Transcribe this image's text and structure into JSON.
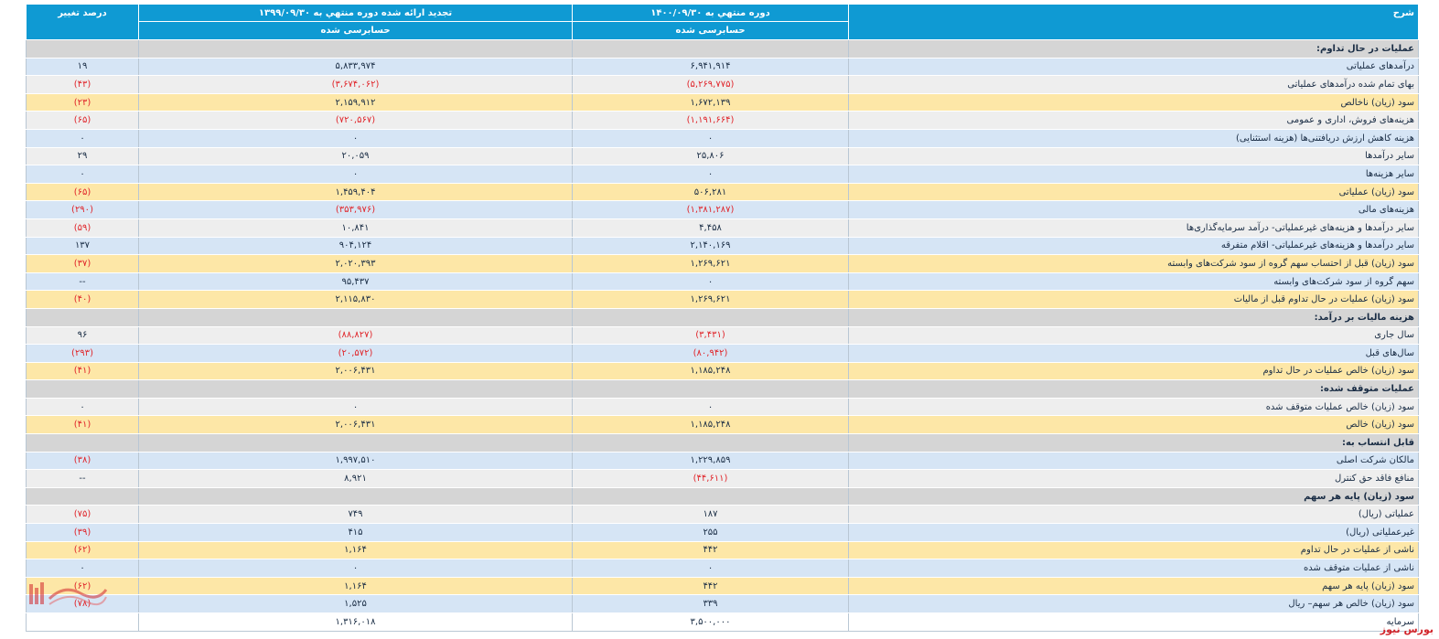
{
  "header": {
    "desc": "شرح",
    "col1": "دوره منتهي به ۱۴۰۰/۰۹/۳۰",
    "col2": "تجدید ارائه شده دوره منتهي به ۱۳۹۹/۰۹/۳۰",
    "col3": "درصد تغيير",
    "col1_sub": "حسابرسی شده",
    "col2_sub": "حسابرسی شده"
  },
  "rows": [
    {
      "type": "sec",
      "label": "عملیات در حال تداوم:",
      "v1": "",
      "v2": "",
      "v3": "",
      "neg": [
        false,
        false,
        false
      ]
    },
    {
      "type": "blue",
      "label": "درآمدهای عملیاتی",
      "v1": "۶,۹۴۱,۹۱۴",
      "v2": "۵,۸۳۳,۹۷۴",
      "v3": "۱۹",
      "neg": [
        false,
        false,
        false
      ]
    },
    {
      "type": "gray",
      "label": "بهای تمام شده درآمدهای عملیاتی",
      "v1": "(۵,۲۶۹,۷۷۵)",
      "v2": "(۳,۶۷۴,۰۶۲)",
      "v3": "(۴۳)",
      "neg": [
        true,
        true,
        true
      ]
    },
    {
      "type": "yel",
      "label": "سود (زیان) ناخالص",
      "v1": "۱,۶۷۲,۱۳۹",
      "v2": "۲,۱۵۹,۹۱۲",
      "v3": "(۲۳)",
      "neg": [
        false,
        false,
        true
      ]
    },
    {
      "type": "gray",
      "label": "هزینه‌های فروش، اداری و عمومی",
      "v1": "(۱,۱۹۱,۶۶۴)",
      "v2": "(۷۲۰,۵۶۷)",
      "v3": "(۶۵)",
      "neg": [
        true,
        true,
        true
      ]
    },
    {
      "type": "blue",
      "label": "هزینه کاهش ارزش دریافتنی‌ها (هزینه استثنایی)",
      "v1": "۰",
      "v2": "۰",
      "v3": "۰",
      "neg": [
        false,
        false,
        false
      ]
    },
    {
      "type": "gray",
      "label": "سایر درآمدها",
      "v1": "۲۵,۸۰۶",
      "v2": "۲۰,۰۵۹",
      "v3": "۲۹",
      "neg": [
        false,
        false,
        false
      ]
    },
    {
      "type": "blue",
      "label": "سایر هزینه‌ها",
      "v1": "۰",
      "v2": "۰",
      "v3": "۰",
      "neg": [
        false,
        false,
        false
      ]
    },
    {
      "type": "yel",
      "label": "سود (زیان) عملیاتی",
      "v1": "۵۰۶,۲۸۱",
      "v2": "۱,۴۵۹,۴۰۴",
      "v3": "(۶۵)",
      "neg": [
        false,
        false,
        true
      ]
    },
    {
      "type": "blue",
      "label": "هزینه‌های مالی",
      "v1": "(۱,۳۸۱,۲۸۷)",
      "v2": "(۳۵۳,۹۷۶)",
      "v3": "(۲۹۰)",
      "neg": [
        true,
        true,
        true
      ]
    },
    {
      "type": "gray",
      "label": "سایر درآمدها و هزینه‌های غیرعملیاتی- درآمد سرمایه‌گذاری‌ها",
      "v1": "۴,۴۵۸",
      "v2": "۱۰,۸۴۱",
      "v3": "(۵۹)",
      "neg": [
        false,
        false,
        true
      ]
    },
    {
      "type": "blue",
      "label": "سایر درآمدها و هزینه‌های غیرعملیاتی- اقلام متفرقه",
      "v1": "۲,۱۴۰,۱۶۹",
      "v2": "۹۰۴,۱۲۴",
      "v3": "۱۳۷",
      "neg": [
        false,
        false,
        false
      ]
    },
    {
      "type": "yel",
      "label": "سود (زیان) قبل از احتساب سهم گروه از سود شرکت‌های وابسته",
      "v1": "۱,۲۶۹,۶۲۱",
      "v2": "۲,۰۲۰,۳۹۳",
      "v3": "(۳۷)",
      "neg": [
        false,
        false,
        true
      ]
    },
    {
      "type": "blue",
      "label": "سهم گروه از سود شرکت‌های وابسته",
      "v1": "۰",
      "v2": "۹۵,۴۳۷",
      "v3": "--",
      "neg": [
        false,
        false,
        false
      ]
    },
    {
      "type": "yel",
      "label": "سود (زیان) عملیات در حال تداوم قبل از مالیات",
      "v1": "۱,۲۶۹,۶۲۱",
      "v2": "۲,۱۱۵,۸۳۰",
      "v3": "(۴۰)",
      "neg": [
        false,
        false,
        true
      ]
    },
    {
      "type": "sec",
      "label": "هزینه مالیات بر درآمد:",
      "v1": "",
      "v2": "",
      "v3": "",
      "neg": [
        false,
        false,
        false
      ]
    },
    {
      "type": "gray",
      "label": "سال جاری",
      "v1": "(۳,۴۳۱)",
      "v2": "(۸۸,۸۲۷)",
      "v3": "۹۶",
      "neg": [
        true,
        true,
        false
      ]
    },
    {
      "type": "blue",
      "label": "سال‌های قبل",
      "v1": "(۸۰,۹۴۲)",
      "v2": "(۲۰,۵۷۲)",
      "v3": "(۲۹۳)",
      "neg": [
        true,
        true,
        true
      ]
    },
    {
      "type": "yel",
      "label": "سود (زیان) خالص عملیات در حال تداوم",
      "v1": "۱,۱۸۵,۲۴۸",
      "v2": "۲,۰۰۶,۴۳۱",
      "v3": "(۴۱)",
      "neg": [
        false,
        false,
        true
      ]
    },
    {
      "type": "sec",
      "label": "عملیات متوقف شده:",
      "v1": "",
      "v2": "",
      "v3": "",
      "neg": [
        false,
        false,
        false
      ]
    },
    {
      "type": "gray",
      "label": "سود (زیان) خالص عملیات متوقف شده",
      "v1": "۰",
      "v2": "۰",
      "v3": "۰",
      "neg": [
        false,
        false,
        false
      ]
    },
    {
      "type": "yel",
      "label": "سود (زیان) خالص",
      "v1": "۱,۱۸۵,۲۴۸",
      "v2": "۲,۰۰۶,۴۳۱",
      "v3": "(۴۱)",
      "neg": [
        false,
        false,
        true
      ]
    },
    {
      "type": "sec",
      "label": "قابل انتساب به:",
      "v1": "",
      "v2": "",
      "v3": "",
      "neg": [
        false,
        false,
        false
      ]
    },
    {
      "type": "blue",
      "label": "مالکان شرکت اصلی",
      "v1": "۱,۲۲۹,۸۵۹",
      "v2": "۱,۹۹۷,۵۱۰",
      "v3": "(۳۸)",
      "neg": [
        false,
        false,
        true
      ]
    },
    {
      "type": "gray",
      "label": "منافع فاقد حق کنترل",
      "v1": "(۴۴,۶۱۱)",
      "v2": "۸,۹۲۱",
      "v3": "--",
      "neg": [
        true,
        false,
        false
      ]
    },
    {
      "type": "sec",
      "label": "سود (زیان) پایه هر سهم",
      "v1": "",
      "v2": "",
      "v3": "",
      "neg": [
        false,
        false,
        false
      ]
    },
    {
      "type": "gray",
      "label": "عملیاتی (ریال)",
      "v1": "۱۸۷",
      "v2": "۷۴۹",
      "v3": "(۷۵)",
      "neg": [
        false,
        false,
        true
      ]
    },
    {
      "type": "blue",
      "label": "غیرعملیاتی (ریال)",
      "v1": "۲۵۵",
      "v2": "۴۱۵",
      "v3": "(۳۹)",
      "neg": [
        false,
        false,
        true
      ]
    },
    {
      "type": "yel",
      "label": "ناشی از عملیات در حال تداوم",
      "v1": "۴۴۲",
      "v2": "۱,۱۶۴",
      "v3": "(۶۲)",
      "neg": [
        false,
        false,
        true
      ]
    },
    {
      "type": "blue",
      "label": "ناشی از عملیات متوقف شده",
      "v1": "۰",
      "v2": "۰",
      "v3": "۰",
      "neg": [
        false,
        false,
        false
      ]
    },
    {
      "type": "yel",
      "label": "سود (زیان) پایه هر سهم",
      "v1": "۴۴۲",
      "v2": "۱,۱۶۴",
      "v3": "(۶۲)",
      "neg": [
        false,
        false,
        true
      ]
    },
    {
      "type": "blue",
      "label": "سود (زیان) خالص هر سهم– ریال",
      "v1": "۳۳۹",
      "v2": "۱,۵۲۵",
      "v3": "(۷۸)",
      "neg": [
        false,
        false,
        true
      ]
    },
    {
      "type": "white",
      "label": "سرمایه",
      "v1": "۳,۵۰۰,۰۰۰",
      "v2": "۱,۳۱۶,۰۱۸",
      "v3": "",
      "neg": [
        false,
        false,
        false
      ]
    }
  ],
  "brand": "بورس نیوز",
  "colors": {
    "header": "#0f9ad3",
    "section": "#d5d5d5",
    "blue_row": "#d6e5f5",
    "gray_row": "#eeeeee",
    "yellow_row": "#fde7a7",
    "negative": "#e0262b"
  }
}
